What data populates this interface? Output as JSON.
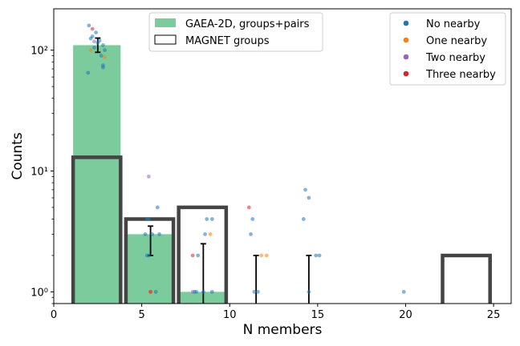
{
  "chart_data": {
    "type": "bar",
    "title": "",
    "xlabel": "N members",
    "ylabel": "Counts",
    "xlim": [
      0,
      26
    ],
    "ylim": [
      0.8,
      220
    ],
    "yscale": "log",
    "x_ticks": [
      0,
      5,
      10,
      15,
      20,
      25
    ],
    "x_tick_labels": [
      "0",
      "5",
      "10",
      "15",
      "20",
      "25"
    ],
    "y_ticks": [
      1,
      10,
      100
    ],
    "y_tick_labels": [
      "10⁰",
      "10¹",
      "10²"
    ],
    "series": [
      {
        "name": "GAEA-2D, groups+pairs",
        "type": "filled-bar",
        "color": "#7ccb9c",
        "bins": [
          {
            "x0": 1.1,
            "x1": 3.8,
            "value": 110
          },
          {
            "x0": 4.1,
            "x1": 6.8,
            "value": 3
          },
          {
            "x0": 7.1,
            "x1": 9.8,
            "value": 1
          }
        ]
      },
      {
        "name": "MAGNET groups",
        "type": "outline-bar",
        "color": "#444444",
        "bins": [
          {
            "x0": 1.1,
            "x1": 3.8,
            "value": 13
          },
          {
            "x0": 4.1,
            "x1": 6.8,
            "value": 4
          },
          {
            "x0": 7.1,
            "x1": 9.8,
            "value": 5
          },
          {
            "x0": 22.1,
            "x1": 24.8,
            "value": 2
          }
        ]
      }
    ],
    "error_bars": [
      {
        "x": 2.5,
        "low": 96,
        "high": 126,
        "cap": true
      },
      {
        "x": 5.5,
        "low": 2,
        "high": 3.5,
        "cap": true
      },
      {
        "x": 8.5,
        "low": 0.8,
        "high": 2.5,
        "cap": true
      },
      {
        "x": 11.5,
        "low": 0.8,
        "high": 2,
        "cap": true
      },
      {
        "x": 14.5,
        "low": 0.8,
        "high": 2,
        "cap": true
      }
    ],
    "scatter": [
      {
        "name": "No nearby",
        "color": "#1f77b4",
        "points": [
          [
            2,
            160
          ],
          [
            2.2,
            130
          ],
          [
            2.4,
            140
          ],
          [
            2.6,
            120
          ],
          [
            2.8,
            110
          ],
          [
            2.9,
            100
          ],
          [
            2.3,
            105
          ],
          [
            2.7,
            90
          ],
          [
            2.5,
            115
          ],
          [
            2.8,
            75
          ],
          [
            2.8,
            72
          ],
          [
            1.95,
            65
          ],
          [
            2.1,
            125
          ],
          [
            5.3,
            4
          ],
          [
            5.4,
            4
          ],
          [
            5.2,
            3
          ],
          [
            5.6,
            3
          ],
          [
            5.9,
            5
          ],
          [
            6.0,
            3
          ],
          [
            5.3,
            2
          ],
          [
            5.4,
            2
          ],
          [
            5.8,
            1
          ],
          [
            8.0,
            1
          ],
          [
            8.1,
            1
          ],
          [
            8.2,
            2
          ],
          [
            8.5,
            1
          ],
          [
            8.6,
            3
          ],
          [
            8.7,
            4
          ],
          [
            9.0,
            4
          ],
          [
            9.0,
            1
          ],
          [
            11.2,
            3
          ],
          [
            11.3,
            4
          ],
          [
            11.4,
            1
          ],
          [
            11.6,
            1
          ],
          [
            14.2,
            4
          ],
          [
            14.3,
            7
          ],
          [
            14.5,
            6
          ],
          [
            14.5,
            1
          ],
          [
            14.9,
            2
          ],
          [
            15.1,
            2
          ],
          [
            19.9,
            1
          ]
        ]
      },
      {
        "name": "One nearby",
        "color": "#ff7f0e",
        "points": [
          [
            2.1,
            100
          ],
          [
            2.9,
            88
          ],
          [
            5.5,
            1
          ],
          [
            8.9,
            3
          ],
          [
            11.8,
            2
          ],
          [
            12.1,
            2
          ]
        ]
      },
      {
        "name": "Two nearby",
        "color": "#9467bd",
        "points": [
          [
            2.3,
            118
          ],
          [
            5.4,
            9
          ],
          [
            7.9,
            1
          ]
        ]
      },
      {
        "name": "Three nearby",
        "color": "#d62728",
        "points": [
          [
            2.2,
            150
          ],
          [
            5.5,
            1
          ],
          [
            7.9,
            2
          ],
          [
            11.1,
            5
          ]
        ]
      }
    ],
    "legends": [
      {
        "position": "top-center",
        "entries": [
          {
            "label": "GAEA-2D, groups+pairs",
            "swatch": "filled",
            "color": "#7ccb9c"
          },
          {
            "label": "MAGNET groups",
            "swatch": "outline",
            "color": "#000000"
          }
        ]
      },
      {
        "position": "top-right",
        "entries": [
          {
            "label": "No nearby",
            "swatch": "dot",
            "color": "#1f77b4"
          },
          {
            "label": "One nearby",
            "swatch": "dot",
            "color": "#ff7f0e"
          },
          {
            "label": "Two nearby",
            "swatch": "dot",
            "color": "#9467bd"
          },
          {
            "label": "Three nearby",
            "swatch": "dot",
            "color": "#d62728"
          }
        ]
      }
    ]
  }
}
